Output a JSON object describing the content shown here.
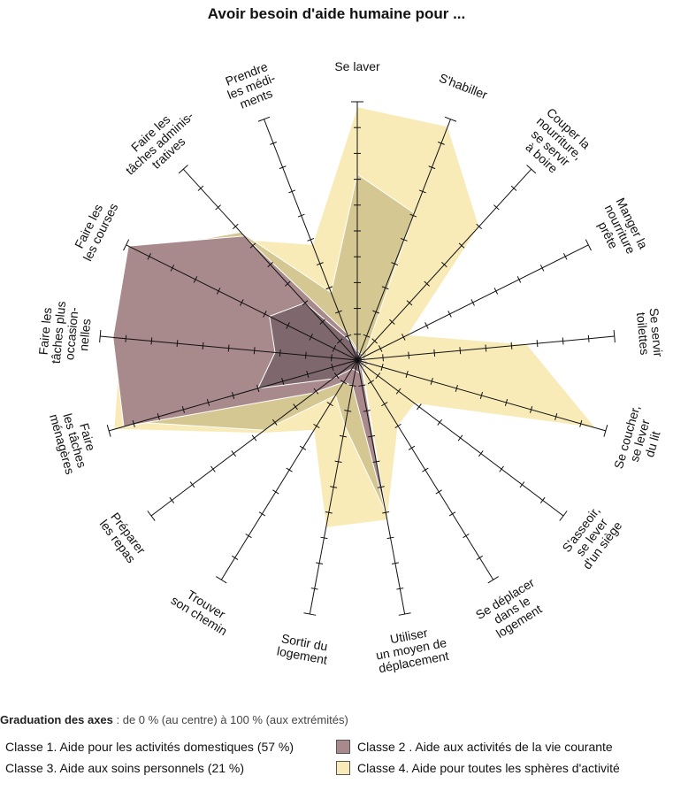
{
  "chart_data": {
    "type": "radar",
    "title": "Avoir besoin d'aide humaine pour ...",
    "axes": [
      [
        "Se laver"
      ],
      [
        "S'habiller"
      ],
      [
        "Couper la",
        "nourriture,",
        "se servir",
        "à boire"
      ],
      [
        "Manger la",
        "nourriture",
        "prête"
      ],
      [
        "Se servir",
        "toilettes"
      ],
      [
        "Se coucher,",
        "se lever",
        "du lit"
      ],
      [
        "S'asseoir,",
        "se lever",
        "d'un siège"
      ],
      [
        "Se déplacer",
        "dans le",
        "logement"
      ],
      [
        "Utiliser",
        "un moyen de",
        "déplacement"
      ],
      [
        "Sortir du",
        "logement"
      ],
      [
        "Trouver",
        "son chemin"
      ],
      [
        "Préparer",
        "les repas"
      ],
      [
        "Faire",
        "les tâches",
        "ménagères"
      ],
      [
        "Faire les",
        "tâches plus",
        "occasion-",
        "nelles"
      ],
      [
        "Faire les",
        "les courses"
      ],
      [
        "Faire les",
        "tâches adminis-",
        "tratives"
      ],
      [
        "Prendre",
        "les médi-",
        "ments"
      ]
    ],
    "range": [
      0,
      100
    ],
    "ticks": 10,
    "series": [
      {
        "name": "Classe 4. Aide pour toutes les sphères d'activité",
        "color": "#f8ebb8",
        "values": [
          98,
          97,
          70,
          22,
          66,
          96,
          28,
          30,
          63,
          66,
          32,
          47,
          98,
          92,
          79,
          63,
          48
        ]
      },
      {
        "name": "Classe 3. Aide aux soins personnels (21 %)",
        "color": "#d5c792",
        "values": [
          72,
          61,
          5,
          4,
          3,
          5,
          4,
          4,
          60,
          26,
          16,
          45,
          88,
          85,
          95,
          67,
          28
        ]
      },
      {
        "name": "Classe 2 . Aide aux activités de la vie courante",
        "color": "#a8898c",
        "values": [
          4,
          3,
          3,
          2,
          2,
          3,
          3,
          3,
          60,
          10,
          10,
          21,
          94,
          95,
          99,
          65,
          11
        ]
      },
      {
        "name": "Classe 1. Aide pour les activités domestiques (57 %)",
        "color": "#7e676d",
        "values": [
          3,
          2,
          2,
          2,
          2,
          2,
          2,
          2,
          5,
          4,
          4,
          12,
          40,
          32,
          38,
          30,
          8
        ]
      }
    ]
  },
  "scale_note": {
    "bold": "Graduation des axes",
    "rest": " : de 0 % (au centre) à 100 % (aux extrémités)"
  },
  "legend_left": [
    {
      "label": "Classe 1. Aide pour les activités domestiques (57 %)",
      "color": "#7e676d"
    },
    {
      "label": "Classe 3. Aide aux soins personnels (21 %)",
      "color": "#d5c792"
    }
  ],
  "legend_right": [
    {
      "label": "Classe 2 . Aide aux activités de la vie courante",
      "color": "#a8898c"
    },
    {
      "label": "Classe 4. Aide pour toutes les sphères d'activité",
      "color": "#f8ebb8"
    }
  ]
}
